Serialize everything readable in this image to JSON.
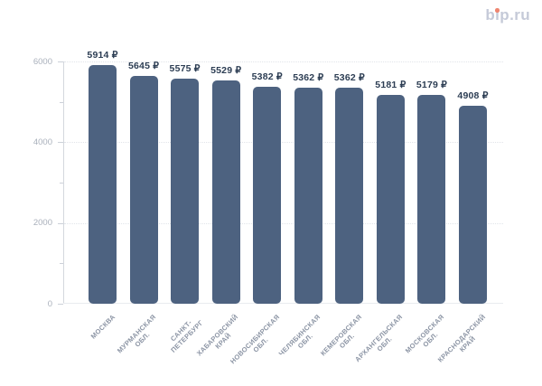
{
  "logo": {
    "text": "bip.ru"
  },
  "colors": {
    "bar": "#4d6280",
    "value_label": "#2c3d53",
    "y_axis_label": "#a9b0bb",
    "x_axis_label": "#8b94a4",
    "gridline": "#e1e4e9",
    "axis_line": "#d4d8de",
    "logo_text": "#c5cad8",
    "logo_dot": "#ee8570",
    "background": "#ffffff"
  },
  "chart_data": {
    "type": "bar",
    "title": "",
    "xlabel": "",
    "ylabel": "",
    "categories": [
      "МОСКВА",
      "МУРМАНСКАЯ ОБЛ.",
      "САНКТ-ПЕТЕРБУРГ",
      "ХАБАРОВСКИЙ КРАЙ",
      "НОВОСИБИРСКАЯ ОБЛ.",
      "ЧЕЛЯБИНСКАЯ ОБЛ.",
      "КЕМЕРОВСКАЯ ОБЛ.",
      "АРХАНГЕЛЬСКАЯ ОБЛ.",
      "МОСКОВСКАЯ ОБЛ.",
      "КРАСНОДАРСКИЙ КРАЙ"
    ],
    "category_lines": [
      [
        "МОСКВА"
      ],
      [
        "МУРМАНСКАЯ",
        "ОБЛ."
      ],
      [
        "САНКТ-",
        "ПЕТЕРБУРГ"
      ],
      [
        "ХАБАРОВСКИЙ",
        "КРАЙ"
      ],
      [
        "НОВОСИБИРСКАЯ",
        "ОБЛ."
      ],
      [
        "ЧЕЛЯБИНСКАЯ",
        "ОБЛ."
      ],
      [
        "КЕМЕРОВСКАЯ",
        "ОБЛ."
      ],
      [
        "АРХАНГЕЛЬСКАЯ",
        "ОБЛ."
      ],
      [
        "МОСКОВСКАЯ",
        "ОБЛ."
      ],
      [
        "КРАСНОДАРСКИЙ",
        "КРАЙ"
      ]
    ],
    "values": [
      5914,
      5645,
      5575,
      5529,
      5382,
      5362,
      5362,
      5181,
      5179,
      4908
    ],
    "value_labels": [
      "5914 ₽",
      "5645 ₽",
      "5575 ₽",
      "5529 ₽",
      "5382 ₽",
      "5362 ₽",
      "5362 ₽",
      "5181 ₽",
      "5179 ₽",
      "4908 ₽"
    ],
    "currency_unit": "₽",
    "yticks": [
      0,
      2000,
      4000,
      6000
    ],
    "ytick_labels": [
      "0",
      "2000",
      "4000",
      "6000"
    ],
    "minor_yticks": [
      1000,
      3000,
      5000
    ],
    "ylim": [
      0,
      6000
    ],
    "grid": "horizontal-dotted",
    "legend": "none",
    "bar_orientation": "vertical"
  }
}
